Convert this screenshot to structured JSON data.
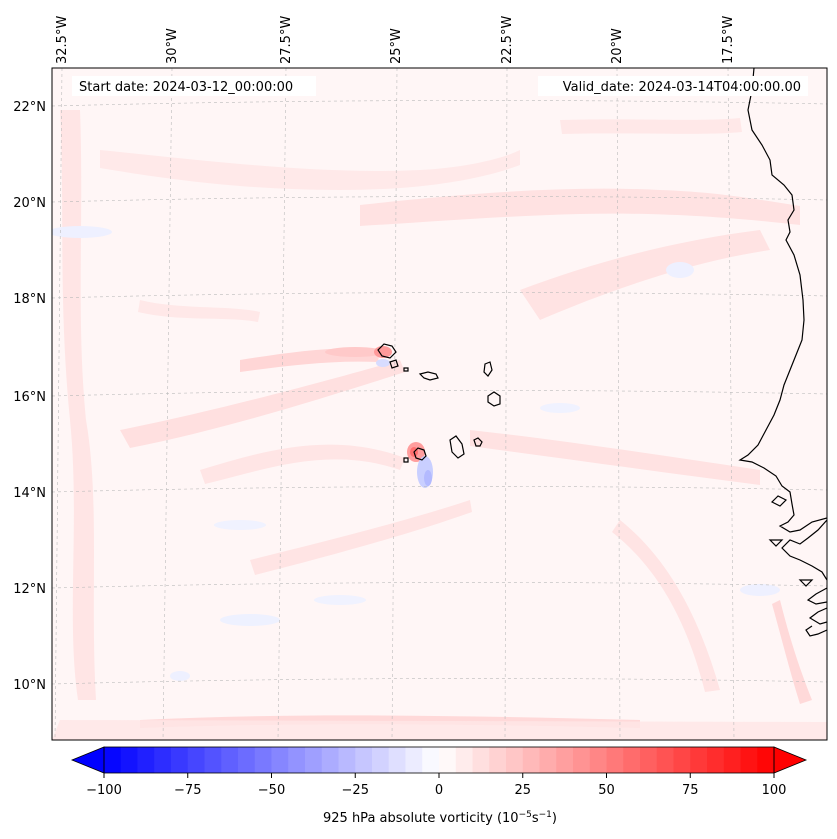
{
  "header": {
    "start_date": "Start date: 2024-03-12_00:00:00",
    "valid_date": "Valid_date: 2024-03-14T04:00:00.00"
  },
  "map": {
    "lon_labels": [
      "32.5°W",
      "30°W",
      "27.5°W",
      "25°W",
      "22.5°W",
      "20°W",
      "17.5°W"
    ],
    "lat_labels": [
      "22°N",
      "20°N",
      "18°N",
      "16°N",
      "14°N",
      "12°N",
      "10°N"
    ],
    "coastline_color": "#000000",
    "gridline_color": "#bbbbbb"
  },
  "colorbar": {
    "label_main": "925 hPa absolute vorticity (10",
    "label_exp1": "−5",
    "label_mid": "s",
    "label_exp2": "−1",
    "label_end": ")",
    "ticks": [
      "−100",
      "−75",
      "−50",
      "−25",
      "0",
      "25",
      "50",
      "75",
      "100"
    ],
    "min_color": "#0000ff",
    "mid_color": "#ffffff",
    "max_color": "#ff0000"
  }
}
